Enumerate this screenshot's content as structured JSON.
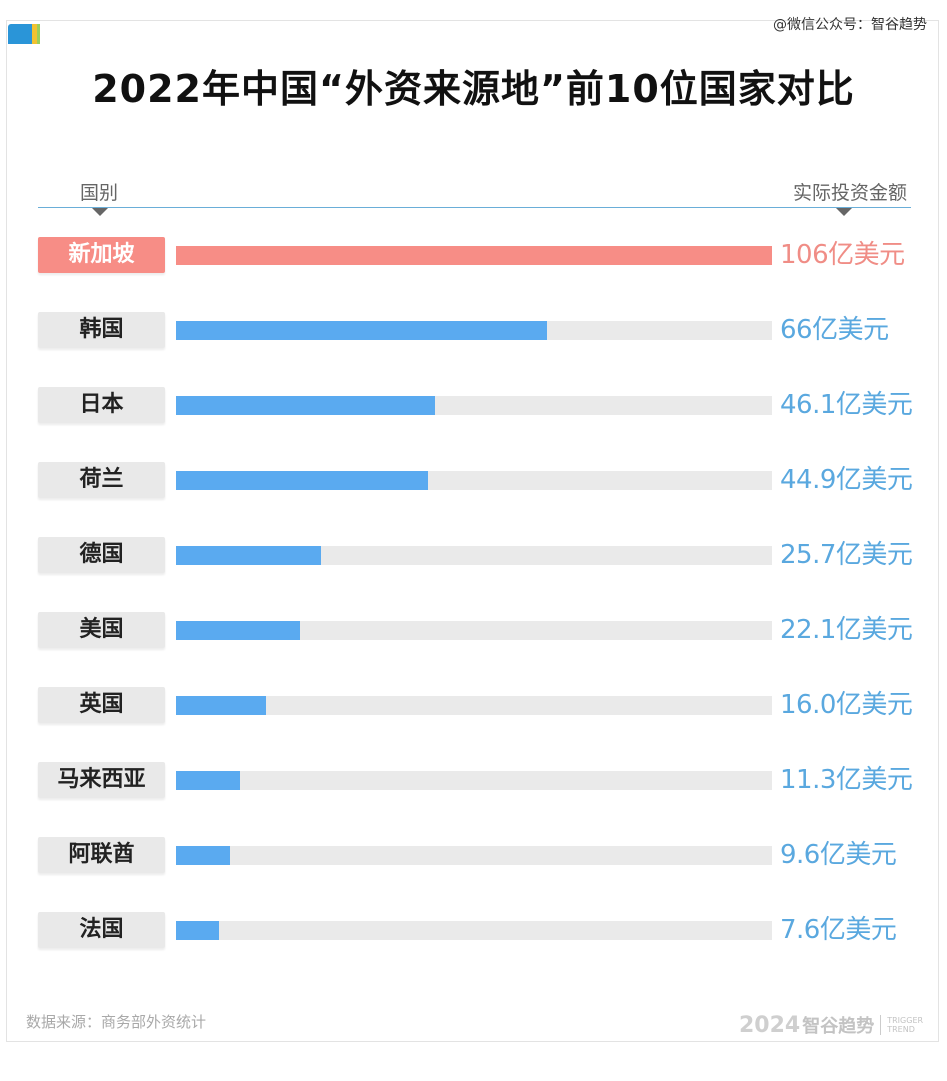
{
  "watermark": "@微信公众号：智谷趋势",
  "header": {
    "left": "国别",
    "right": "实际投资金额"
  },
  "chart_data": {
    "type": "bar",
    "title": "2022年中国“外资来源地”前10位国家对比",
    "categories": [
      "新加坡",
      "韩国",
      "日本",
      "荷兰",
      "德国",
      "美国",
      "英国",
      "马来西亚",
      "阿联酋",
      "法国"
    ],
    "values": [
      106,
      66,
      46.1,
      44.9,
      25.7,
      22.1,
      16.0,
      11.3,
      9.6,
      7.6
    ],
    "value_labels": [
      "106亿美元",
      "66亿美元",
      "46.1亿美元",
      "44.9亿美元",
      "25.7亿美元",
      "22.1亿美元",
      "16.0亿美元",
      "11.3亿美元",
      "9.6亿美元",
      "7.6亿美元"
    ],
    "unit": "亿美元",
    "orientation": "horizontal",
    "xlim": [
      0,
      106
    ],
    "highlight_index": 0,
    "colors": {
      "highlight": "#f78d86",
      "bar": "#5aaaf0",
      "track": "#eaeaea"
    }
  },
  "footer": {
    "source": "数据来源：商务部外资统计",
    "logo_year": "2024",
    "logo_name": "智谷趋势",
    "logo_en_1": "TRIGGER",
    "logo_en_2": "TREND"
  }
}
